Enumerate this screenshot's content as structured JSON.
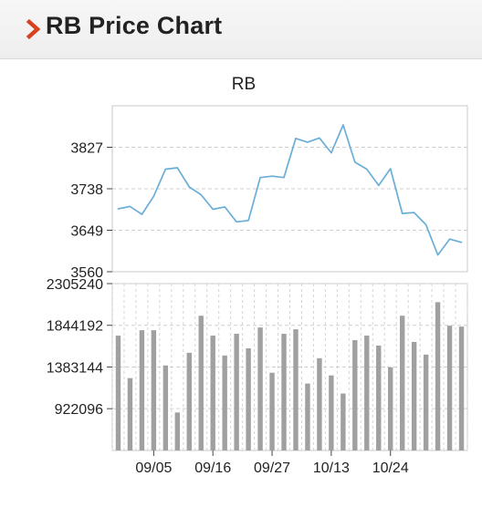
{
  "header": {
    "title": "RB Price Chart",
    "accent": "#d9411e"
  },
  "chart_data": [
    {
      "type": "line",
      "title": "RB",
      "ylim": [
        3560,
        3916
      ],
      "yticks": [
        3560,
        3649,
        3738,
        3827
      ],
      "grid": true,
      "color": "#6aaed8",
      "values": [
        3695,
        3700,
        3683,
        3722,
        3780,
        3783,
        3742,
        3725,
        3694,
        3699,
        3667,
        3670,
        3762,
        3765,
        3762,
        3846,
        3838,
        3847,
        3815,
        3875,
        3795,
        3780,
        3745,
        3781,
        3685,
        3687,
        3661,
        3596,
        3630,
        3623
      ]
    },
    {
      "type": "bar",
      "ylim": [
        460000,
        2305240
      ],
      "yticks": [
        922096,
        1383144,
        1844192,
        2305240
      ],
      "grid": true,
      "color": "#a0a0a0",
      "categories": [
        "",
        "",
        "",
        "09/05",
        "",
        "",
        "",
        "",
        "09/16",
        "",
        "",
        "",
        "",
        "09/27",
        "",
        "",
        "",
        "",
        "10/13",
        "",
        "",
        "",
        "",
        "10/24",
        "",
        "",
        "",
        "",
        "",
        ""
      ],
      "values": [
        1730000,
        1260000,
        1790000,
        1790000,
        1400000,
        880000,
        1540000,
        1950000,
        1730000,
        1510000,
        1750000,
        1590000,
        1820000,
        1320000,
        1750000,
        1800000,
        1200000,
        1480000,
        1290000,
        1090000,
        1680000,
        1730000,
        1620000,
        1380000,
        1950000,
        1660000,
        1520000,
        2100000,
        1840000,
        1830000
      ]
    }
  ]
}
